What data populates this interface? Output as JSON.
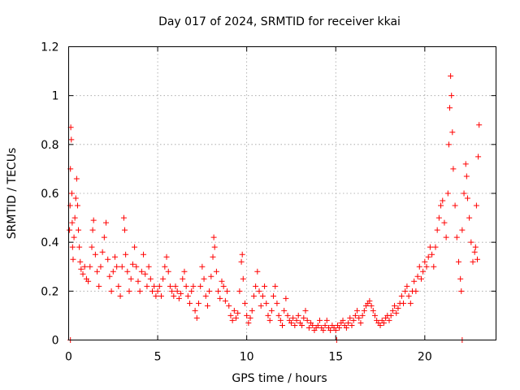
{
  "chart_data": {
    "type": "scatter",
    "title": "Day 017 of 2024, SRMTID for receiver kkai",
    "xlabel": "GPS time / hours",
    "ylabel": "SRMTID / TECUs",
    "xlim": [
      0,
      24
    ],
    "ylim": [
      0,
      1.2
    ],
    "xticks": [
      0,
      5,
      10,
      15,
      20
    ],
    "xtick_labels": [
      "0",
      "5",
      "10",
      "15",
      "20"
    ],
    "yticks": [
      0,
      0.2,
      0.4,
      0.6,
      0.8,
      1,
      1.2
    ],
    "ytick_labels": [
      "0",
      "0.2",
      "0.4",
      "0.6",
      "0.8",
      "1",
      "1.2"
    ],
    "grid": true,
    "marker": "+",
    "color": "#ff0000",
    "series": [
      {
        "name": "SRMTID",
        "points": [
          [
            0.05,
            0.45
          ],
          [
            0.08,
            0.55
          ],
          [
            0.1,
            0.7
          ],
          [
            0.12,
            0.87
          ],
          [
            0.15,
            0.82
          ],
          [
            0.18,
            0.6
          ],
          [
            0.2,
            0.48
          ],
          [
            0.22,
            0.38
          ],
          [
            0.25,
            0.33
          ],
          [
            0.3,
            0.42
          ],
          [
            0.35,
            0.5
          ],
          [
            0.4,
            0.58
          ],
          [
            0.45,
            0.66
          ],
          [
            0.5,
            0.55
          ],
          [
            0.55,
            0.45
          ],
          [
            0.6,
            0.38
          ],
          [
            0.65,
            0.32
          ],
          [
            0.7,
            0.29
          ],
          [
            0.8,
            0.27
          ],
          [
            0.9,
            0.3
          ],
          [
            1.0,
            0.25
          ],
          [
            1.1,
            0.24
          ],
          [
            1.2,
            0.3
          ],
          [
            1.3,
            0.38
          ],
          [
            1.35,
            0.45
          ],
          [
            1.4,
            0.49
          ],
          [
            1.5,
            0.35
          ],
          [
            1.6,
            0.28
          ],
          [
            1.7,
            0.22
          ],
          [
            1.8,
            0.3
          ],
          [
            1.9,
            0.36
          ],
          [
            2.0,
            0.42
          ],
          [
            2.1,
            0.48
          ],
          [
            2.2,
            0.33
          ],
          [
            2.3,
            0.26
          ],
          [
            2.4,
            0.2
          ],
          [
            2.5,
            0.28
          ],
          [
            2.6,
            0.34
          ],
          [
            2.7,
            0.3
          ],
          [
            2.8,
            0.22
          ],
          [
            2.9,
            0.18
          ],
          [
            3.0,
            0.3
          ],
          [
            3.1,
            0.5
          ],
          [
            3.15,
            0.45
          ],
          [
            3.2,
            0.35
          ],
          [
            3.3,
            0.28
          ],
          [
            3.4,
            0.2
          ],
          [
            3.5,
            0.25
          ],
          [
            3.6,
            0.31
          ],
          [
            3.7,
            0.38
          ],
          [
            3.8,
            0.3
          ],
          [
            3.9,
            0.24
          ],
          [
            4.0,
            0.2
          ],
          [
            4.1,
            0.28
          ],
          [
            4.2,
            0.35
          ],
          [
            4.3,
            0.27
          ],
          [
            4.4,
            0.22
          ],
          [
            4.5,
            0.3
          ],
          [
            4.6,
            0.25
          ],
          [
            4.7,
            0.2
          ],
          [
            4.8,
            0.22
          ],
          [
            4.9,
            0.18
          ],
          [
            5.0,
            0.2
          ],
          [
            5.1,
            0.22
          ],
          [
            5.2,
            0.18
          ],
          [
            5.3,
            0.25
          ],
          [
            5.4,
            0.3
          ],
          [
            5.5,
            0.34
          ],
          [
            5.6,
            0.28
          ],
          [
            5.7,
            0.22
          ],
          [
            5.8,
            0.2
          ],
          [
            5.9,
            0.18
          ],
          [
            6.0,
            0.22
          ],
          [
            6.1,
            0.2
          ],
          [
            6.2,
            0.17
          ],
          [
            6.3,
            0.19
          ],
          [
            6.4,
            0.25
          ],
          [
            6.5,
            0.28
          ],
          [
            6.6,
            0.22
          ],
          [
            6.7,
            0.18
          ],
          [
            6.8,
            0.15
          ],
          [
            6.9,
            0.2
          ],
          [
            7.0,
            0.22
          ],
          [
            7.1,
            0.12
          ],
          [
            7.2,
            0.09
          ],
          [
            7.3,
            0.15
          ],
          [
            7.4,
            0.22
          ],
          [
            7.5,
            0.3
          ],
          [
            7.6,
            0.25
          ],
          [
            7.7,
            0.18
          ],
          [
            7.8,
            0.14
          ],
          [
            7.9,
            0.2
          ],
          [
            8.0,
            0.26
          ],
          [
            8.1,
            0.34
          ],
          [
            8.15,
            0.42
          ],
          [
            8.2,
            0.38
          ],
          [
            8.3,
            0.28
          ],
          [
            8.4,
            0.2
          ],
          [
            8.5,
            0.17
          ],
          [
            8.6,
            0.24
          ],
          [
            8.7,
            0.22
          ],
          [
            8.8,
            0.16
          ],
          [
            8.9,
            0.2
          ],
          [
            9.0,
            0.14
          ],
          [
            9.1,
            0.1
          ],
          [
            9.2,
            0.08
          ],
          [
            9.3,
            0.12
          ],
          [
            9.4,
            0.09
          ],
          [
            9.5,
            0.11
          ],
          [
            9.6,
            0.2
          ],
          [
            9.7,
            0.32
          ],
          [
            9.75,
            0.35
          ],
          [
            9.8,
            0.25
          ],
          [
            9.9,
            0.15
          ],
          [
            10.0,
            0.1
          ],
          [
            10.1,
            0.07
          ],
          [
            10.2,
            0.09
          ],
          [
            10.3,
            0.12
          ],
          [
            10.4,
            0.18
          ],
          [
            10.5,
            0.22
          ],
          [
            10.6,
            0.28
          ],
          [
            10.7,
            0.2
          ],
          [
            10.8,
            0.14
          ],
          [
            10.9,
            0.18
          ],
          [
            11.0,
            0.22
          ],
          [
            11.1,
            0.15
          ],
          [
            11.2,
            0.1
          ],
          [
            11.3,
            0.08
          ],
          [
            11.4,
            0.12
          ],
          [
            11.5,
            0.18
          ],
          [
            11.6,
            0.22
          ],
          [
            11.7,
            0.15
          ],
          [
            11.8,
            0.1
          ],
          [
            11.9,
            0.08
          ],
          [
            12.0,
            0.06
          ],
          [
            12.1,
            0.12
          ],
          [
            12.2,
            0.17
          ],
          [
            12.3,
            0.1
          ],
          [
            12.4,
            0.08
          ],
          [
            12.5,
            0.07
          ],
          [
            12.6,
            0.09
          ],
          [
            12.7,
            0.06
          ],
          [
            12.8,
            0.08
          ],
          [
            12.9,
            0.1
          ],
          [
            13.0,
            0.07
          ],
          [
            13.1,
            0.06
          ],
          [
            13.2,
            0.09
          ],
          [
            13.3,
            0.12
          ],
          [
            13.4,
            0.08
          ],
          [
            13.5,
            0.05
          ],
          [
            13.6,
            0.07
          ],
          [
            13.7,
            0.06
          ],
          [
            13.8,
            0.04
          ],
          [
            13.9,
            0.05
          ],
          [
            14.0,
            0.06
          ],
          [
            14.1,
            0.08
          ],
          [
            14.2,
            0.05
          ],
          [
            14.3,
            0.04
          ],
          [
            14.4,
            0.06
          ],
          [
            14.5,
            0.08
          ],
          [
            14.6,
            0.05
          ],
          [
            14.7,
            0.04
          ],
          [
            14.8,
            0.06
          ],
          [
            14.9,
            0.05
          ],
          [
            15.0,
            0.04
          ],
          [
            15.1,
            0.06
          ],
          [
            15.2,
            0.05
          ],
          [
            15.3,
            0.07
          ],
          [
            15.4,
            0.08
          ],
          [
            15.5,
            0.06
          ],
          [
            15.6,
            0.05
          ],
          [
            15.7,
            0.07
          ],
          [
            15.8,
            0.09
          ],
          [
            15.9,
            0.06
          ],
          [
            16.0,
            0.08
          ],
          [
            16.1,
            0.1
          ],
          [
            16.2,
            0.12
          ],
          [
            16.3,
            0.09
          ],
          [
            16.4,
            0.07
          ],
          [
            16.5,
            0.1
          ],
          [
            16.6,
            0.12
          ],
          [
            16.7,
            0.14
          ],
          [
            16.8,
            0.15
          ],
          [
            16.9,
            0.16
          ],
          [
            17.0,
            0.14
          ],
          [
            17.1,
            0.12
          ],
          [
            17.2,
            0.1
          ],
          [
            17.3,
            0.08
          ],
          [
            17.4,
            0.07
          ],
          [
            17.5,
            0.06
          ],
          [
            17.6,
            0.08
          ],
          [
            17.7,
            0.07
          ],
          [
            17.8,
            0.09
          ],
          [
            17.9,
            0.1
          ],
          [
            18.0,
            0.08
          ],
          [
            18.1,
            0.1
          ],
          [
            18.2,
            0.12
          ],
          [
            18.3,
            0.14
          ],
          [
            18.4,
            0.11
          ],
          [
            18.5,
            0.13
          ],
          [
            18.6,
            0.15
          ],
          [
            18.7,
            0.18
          ],
          [
            18.8,
            0.15
          ],
          [
            18.9,
            0.2
          ],
          [
            19.0,
            0.22
          ],
          [
            19.1,
            0.18
          ],
          [
            19.2,
            0.15
          ],
          [
            19.3,
            0.2
          ],
          [
            19.4,
            0.24
          ],
          [
            19.5,
            0.2
          ],
          [
            19.6,
            0.26
          ],
          [
            19.7,
            0.3
          ],
          [
            19.8,
            0.25
          ],
          [
            19.9,
            0.28
          ],
          [
            20.0,
            0.32
          ],
          [
            20.1,
            0.3
          ],
          [
            20.2,
            0.34
          ],
          [
            20.3,
            0.38
          ],
          [
            20.4,
            0.35
          ],
          [
            20.5,
            0.3
          ],
          [
            20.6,
            0.38
          ],
          [
            20.7,
            0.45
          ],
          [
            20.8,
            0.5
          ],
          [
            20.9,
            0.55
          ],
          [
            21.0,
            0.57
          ],
          [
            21.1,
            0.48
          ],
          [
            21.2,
            0.42
          ],
          [
            21.3,
            0.6
          ],
          [
            21.35,
            0.8
          ],
          [
            21.4,
            0.95
          ],
          [
            21.45,
            1.08
          ],
          [
            21.5,
            1.0
          ],
          [
            21.55,
            0.85
          ],
          [
            21.6,
            0.7
          ],
          [
            21.7,
            0.55
          ],
          [
            21.8,
            0.42
          ],
          [
            21.9,
            0.32
          ],
          [
            22.0,
            0.25
          ],
          [
            22.05,
            0.2
          ],
          [
            22.1,
            0.45
          ],
          [
            22.2,
            0.6
          ],
          [
            22.3,
            0.72
          ],
          [
            22.35,
            0.67
          ],
          [
            22.4,
            0.58
          ],
          [
            22.5,
            0.5
          ],
          [
            22.6,
            0.4
          ],
          [
            22.7,
            0.32
          ],
          [
            22.8,
            0.36
          ],
          [
            22.9,
            0.55
          ],
          [
            23.0,
            0.75
          ],
          [
            23.05,
            0.88
          ],
          [
            22.85,
            0.38
          ],
          [
            22.95,
            0.33
          ],
          [
            0.1,
            0.0
          ],
          [
            22.1,
            0.0
          ],
          [
            15.05,
            0.0
          ]
        ]
      }
    ]
  }
}
